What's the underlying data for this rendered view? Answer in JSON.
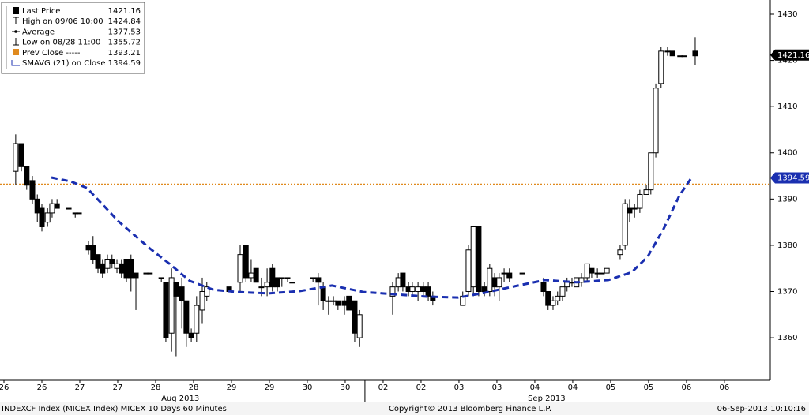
{
  "chart_data": {
    "type": "candlestick",
    "legend": [
      {
        "label": "Last Price",
        "value": 1421.16
      },
      {
        "label": "High on 09/06 10:00",
        "value": 1424.84
      },
      {
        "label": "Average",
        "value": 1377.53
      },
      {
        "label": "Low on 08/28 11:00",
        "value": 1355.72
      },
      {
        "label": "Prev Close -----",
        "value": 1393.21
      },
      {
        "label": "SMAVG (21) on Close",
        "value": 1394.59
      }
    ],
    "footer_left": "INDEXCF Index (MICEX Index) MICEX 10 Days 60 Minutes",
    "footer_center": "Copyright© 2013 Bloomberg Finance L.P.",
    "footer_right": "06-Sep-2013 10:10:16",
    "xlim": [
      -0.104,
      20.21
    ],
    "ylim": [
      1350.8,
      1433.07
    ],
    "yticks": [
      1360,
      1370,
      1380,
      1390,
      1400,
      1410,
      1420,
      1430
    ],
    "xticks": [
      {
        "value": 0,
        "label": "26"
      },
      {
        "value": 1,
        "label": "26"
      },
      {
        "value": 2,
        "label": "27"
      },
      {
        "value": 3,
        "label": "27"
      },
      {
        "value": 4,
        "label": "28"
      },
      {
        "value": 5,
        "label": "28"
      },
      {
        "value": 6,
        "label": "29"
      },
      {
        "value": 7,
        "label": "29"
      },
      {
        "value": 8,
        "label": "30"
      },
      {
        "value": 9,
        "label": "30"
      },
      {
        "value": 10,
        "label": "02"
      },
      {
        "value": 11,
        "label": "02"
      },
      {
        "value": 12,
        "label": "03"
      },
      {
        "value": 13,
        "label": "03"
      },
      {
        "value": 14,
        "label": "04"
      },
      {
        "value": 15,
        "label": "04"
      },
      {
        "value": 16,
        "label": "05"
      },
      {
        "value": 17,
        "label": "05"
      },
      {
        "value": 18,
        "label": "06"
      },
      {
        "value": 19,
        "label": "06"
      }
    ],
    "month_labels": [
      {
        "value": 4.65,
        "label": "Aug 2013"
      },
      {
        "value": 14.31,
        "label": "Sep 2013"
      }
    ],
    "month_boundary": 9.52,
    "prev_close_color": "#e08a1e",
    "sma_color": "#1a2fb0",
    "candles": {
      "x": [
        0.31,
        0.46,
        0.6,
        0.75,
        0.88,
        1.0,
        1.15,
        1.27,
        1.4,
        1.71,
        1.88,
        1.98,
        2.23,
        2.35,
        2.48,
        2.6,
        2.73,
        2.85,
        2.98,
        3.1,
        3.23,
        3.35,
        3.48,
        3.75,
        3.85,
        4.15,
        4.27,
        4.42,
        4.54,
        4.69,
        4.81,
        4.94,
        5.08,
        5.23,
        5.35,
        5.94,
        6.23,
        6.38,
        6.52,
        6.65,
        6.79,
        6.94,
        7.08,
        7.21,
        7.33,
        7.48,
        7.6,
        8.15,
        8.29,
        8.42,
        8.56,
        8.69,
        8.81,
        8.98,
        9.1,
        9.25,
        9.38,
        10.25,
        10.4,
        10.52,
        10.67,
        10.77,
        10.92,
        11.06,
        11.19,
        11.31,
        12.1,
        12.25,
        12.38,
        12.52,
        12.67,
        12.81,
        12.94,
        13.06,
        13.19,
        13.33,
        13.67,
        14.23,
        14.35,
        14.48,
        14.6,
        14.73,
        14.85,
        14.98,
        15.1,
        15.23,
        15.38,
        15.5,
        15.65,
        15.77,
        15.9,
        16.25,
        16.38,
        16.5,
        16.63,
        16.77,
        16.94,
        17.06,
        17.19,
        17.33,
        17.5,
        17.63,
        17.83,
        17.94,
        18.23
      ],
      "open": [
        1396,
        1402,
        1397,
        1394,
        1390,
        1388,
        1385,
        1387,
        1389,
        1388,
        1387,
        1387,
        1380,
        1380,
        1378,
        1376,
        1375,
        1377,
        1375,
        1376,
        1377,
        1377,
        1374,
        1374,
        1374,
        1373,
        1372,
        1361,
        1372,
        1371,
        1368,
        1361,
        1361,
        1366,
        1369,
        1371,
        1372,
        1380,
        1373,
        1375,
        1371,
        1371,
        1375,
        1373,
        1373,
        1373,
        1372,
        1373,
        1373,
        1371,
        1368,
        1368,
        1368,
        1368,
        1369,
        1368,
        1360,
        1369,
        1371,
        1374,
        1371,
        1370,
        1370,
        1371,
        1371,
        1369,
        1367,
        1370,
        1371,
        1384,
        1371,
        1370,
        1373,
        1371,
        1374,
        1374,
        1374,
        1372,
        1370,
        1367,
        1368,
        1369,
        1371,
        1372,
        1371,
        1372,
        1373,
        1375,
        1374,
        1374,
        1374,
        1378,
        1380,
        1388,
        1388,
        1388,
        1391,
        1392,
        1400,
        1415,
        1422,
        1422,
        1421,
        1421,
        1422
      ],
      "high": [
        1404,
        1402,
        1397,
        1395,
        1391,
        1389,
        1388,
        1390,
        1390,
        1388,
        1387,
        1387,
        1381,
        1382,
        1378,
        1377,
        1378,
        1378,
        1377,
        1377,
        1377,
        1378,
        1374,
        1374,
        1374,
        1373,
        1372,
        1375,
        1372,
        1373,
        1368,
        1362,
        1369,
        1373,
        1372,
        1371,
        1380,
        1380,
        1377,
        1375,
        1373,
        1375,
        1376,
        1373,
        1373,
        1373,
        1372,
        1373,
        1374,
        1372,
        1369,
        1369,
        1368,
        1369,
        1369,
        1368,
        1366,
        1372,
        1374,
        1374,
        1372,
        1372,
        1372,
        1372,
        1372,
        1370,
        1370,
        1380,
        1384,
        1384,
        1372,
        1376,
        1374,
        1374,
        1375,
        1375,
        1374,
        1373,
        1370,
        1369,
        1370,
        1371,
        1373,
        1373,
        1373,
        1374,
        1376,
        1375,
        1375,
        1374,
        1375,
        1380,
        1390,
        1390,
        1389,
        1392,
        1393,
        1400,
        1415,
        1423,
        1423,
        1422,
        1421,
        1421,
        1425
      ],
      "low": [
        1393,
        1396,
        1392,
        1389,
        1385,
        1383,
        1384,
        1386,
        1388,
        1388,
        1386,
        1387,
        1378,
        1376,
        1374,
        1373,
        1374,
        1375,
        1374,
        1373,
        1372,
        1370,
        1366,
        1374,
        1374,
        1372,
        1359,
        1357,
        1356,
        1362,
        1358,
        1359,
        1359,
        1363,
        1368,
        1370,
        1370,
        1372,
        1372,
        1372,
        1369,
        1369,
        1370,
        1370,
        1371,
        1372,
        1372,
        1372,
        1367,
        1366,
        1365,
        1367,
        1366,
        1365,
        1366,
        1359,
        1358,
        1365,
        1370,
        1370,
        1369,
        1369,
        1368,
        1369,
        1368,
        1367,
        1367,
        1369,
        1369,
        1369,
        1369,
        1369,
        1369,
        1368,
        1372,
        1372,
        1374,
        1369,
        1366,
        1366,
        1367,
        1368,
        1370,
        1371,
        1371,
        1371,
        1372,
        1373,
        1373,
        1374,
        1374,
        1377,
        1379,
        1385,
        1386,
        1387,
        1391,
        1391,
        1399,
        1414,
        1421,
        1421,
        1421,
        1421,
        1419
      ],
      "close": [
        1402,
        1397,
        1393,
        1390,
        1387,
        1384,
        1387,
        1389,
        1388,
        1388,
        1387,
        1387,
        1379,
        1377,
        1375,
        1374,
        1377,
        1376,
        1376,
        1374,
        1373,
        1373,
        1373,
        1374,
        1374,
        1373,
        1360,
        1373,
        1369,
        1368,
        1361,
        1360,
        1367,
        1370,
        1371,
        1370,
        1378,
        1373,
        1374,
        1372,
        1371,
        1372,
        1371,
        1371,
        1373,
        1373,
        1372,
        1373,
        1372,
        1368,
        1368,
        1368,
        1367,
        1367,
        1366,
        1361,
        1365,
        1371,
        1373,
        1371,
        1370,
        1371,
        1371,
        1370,
        1369,
        1368,
        1369,
        1379,
        1384,
        1370,
        1370,
        1375,
        1371,
        1373,
        1374,
        1373,
        1374,
        1370,
        1367,
        1368,
        1369,
        1371,
        1372,
        1372,
        1373,
        1373,
        1376,
        1374,
        1374,
        1374,
        1375,
        1379,
        1389,
        1387,
        1388,
        1391,
        1392,
        1400,
        1414,
        1422,
        1422,
        1421,
        1421,
        1421,
        1421
      ]
    },
    "sma": {
      "x": [
        1.25,
        1.77,
        2.19,
        3.02,
        3.85,
        4.38,
        4.9,
        5.52,
        6.15,
        6.98,
        7.81,
        8.65,
        9.48,
        10.31,
        11.15,
        11.98,
        12.6,
        13.44,
        14.27,
        15.1,
        15.94,
        16.56,
        16.98,
        17.4,
        17.81,
        18.13
      ],
      "values": [
        1394.66,
        1393.8,
        1392.4,
        1385.2,
        1379.3,
        1375.9,
        1372.3,
        1370.4,
        1369.9,
        1369.6,
        1370.1,
        1371.3,
        1369.9,
        1369.4,
        1368.9,
        1368.7,
        1369.6,
        1371.1,
        1372.5,
        1372.0,
        1372.5,
        1374.2,
        1377.6,
        1383.6,
        1390.7,
        1394.59
      ]
    }
  }
}
